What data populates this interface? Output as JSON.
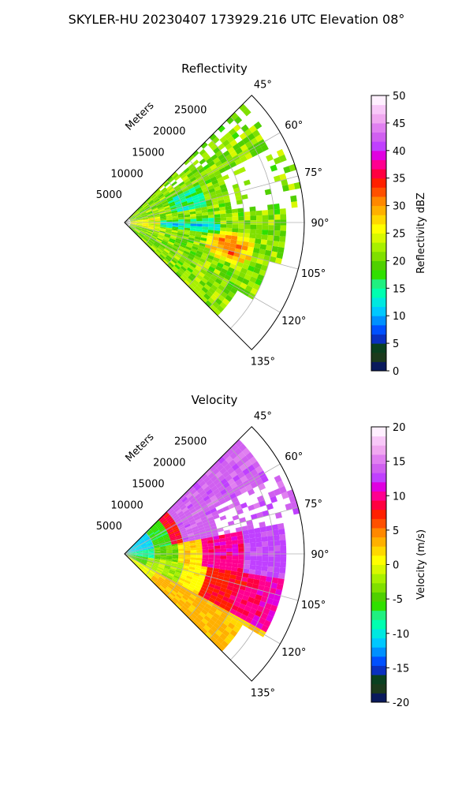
{
  "figure": {
    "title": "SKYLER-HU  20230407  173929.216 UTC Elevation 08°"
  },
  "chart_data": [
    {
      "type": "heatmap",
      "subtype": "radar-ppi-sector",
      "title": "Reflectivity",
      "radial_label": "Meters",
      "radial_ticks": [
        5000,
        10000,
        15000,
        20000,
        25000
      ],
      "azimuth_ticks": [
        "45°",
        "60°",
        "75°",
        "90°",
        "105°",
        "120°",
        "135°"
      ],
      "azimuth_range": [
        45,
        135
      ],
      "range_max": 30000,
      "grid": true,
      "colorbar": {
        "label": "Reflectivity dBZ",
        "ticks": [
          0,
          5,
          10,
          15,
          20,
          25,
          30,
          35,
          40,
          45,
          50
        ],
        "range": [
          0,
          50
        ],
        "palette": [
          "#0a1a5c",
          "#1c3a1c",
          "#0a4020",
          "#0a30c0",
          "#0050ff",
          "#0090ff",
          "#00c8ff",
          "#00e8e0",
          "#00ffb0",
          "#20f080",
          "#30e000",
          "#50d000",
          "#80e000",
          "#a8f000",
          "#d8f800",
          "#ffff00",
          "#ffd800",
          "#ffb000",
          "#ff8800",
          "#ff5000",
          "#ff2000",
          "#ff0040",
          "#ff0090",
          "#e000e0",
          "#c040ff",
          "#d060f0",
          "#e080f0",
          "#f0a8f0",
          "#f8c8f8",
          "#fff0ff"
        ]
      },
      "field_description_levels": {
        "dominant": "20–25 dBZ",
        "band_near_90": "10–15 dBZ",
        "max_patch": "30–35 dBZ near 100° at 15–20 km"
      }
    },
    {
      "type": "heatmap",
      "subtype": "radar-ppi-sector",
      "title": "Velocity",
      "radial_label": "Meters",
      "radial_ticks": [
        5000,
        10000,
        15000,
        20000,
        25000
      ],
      "azimuth_ticks": [
        "45°",
        "60°",
        "75°",
        "90°",
        "105°",
        "120°",
        "135°"
      ],
      "azimuth_range": [
        45,
        135
      ],
      "range_max": 30000,
      "grid": true,
      "colorbar": {
        "label": "Velocity (m/s)",
        "ticks": [
          -20,
          -15,
          -10,
          -5,
          0,
          5,
          10,
          15,
          20
        ],
        "range": [
          -20,
          20
        ],
        "palette": [
          "#0a1a5c",
          "#1c3a1c",
          "#0a4020",
          "#0a30c0",
          "#0050ff",
          "#0090ff",
          "#00c8ff",
          "#00e8e0",
          "#00ffb0",
          "#20f080",
          "#30e000",
          "#50d000",
          "#80e000",
          "#a8f000",
          "#d8f800",
          "#ffff00",
          "#ffd800",
          "#ffb000",
          "#ff8800",
          "#ff5000",
          "#ff2000",
          "#ff0040",
          "#ff0090",
          "#e000e0",
          "#c040ff",
          "#d060f0",
          "#e080f0",
          "#f0a8f0",
          "#f8c8f8",
          "#fff0ff"
        ]
      }
    }
  ]
}
